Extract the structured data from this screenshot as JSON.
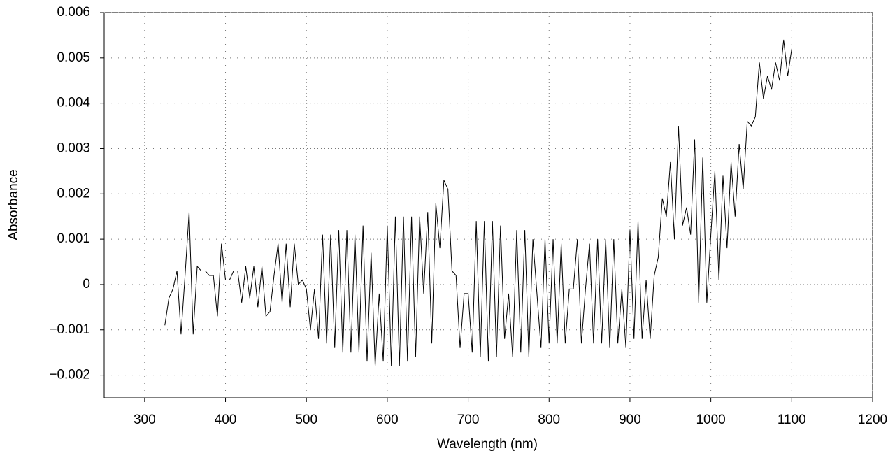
{
  "chart_data": {
    "type": "line",
    "xlabel": "Wavelength (nm)",
    "ylabel": "Absorbance",
    "xlim": [
      250,
      1200
    ],
    "xticks": [
      300,
      400,
      500,
      600,
      700,
      800,
      900,
      1000,
      1100,
      1200
    ],
    "ylim": [
      -0.0025,
      0.006
    ],
    "yticks": [
      {
        "value": -0.002,
        "label": "−0.002"
      },
      {
        "value": -0.001,
        "label": "−0.001"
      },
      0,
      0.001,
      0.002,
      0.003,
      0.004,
      0.005,
      0.006
    ],
    "grid": true,
    "series": [
      {
        "color": "#000000",
        "x": [
          325,
          330,
          335,
          340,
          345,
          350,
          355,
          360,
          365,
          370,
          375,
          380,
          385,
          390,
          395,
          400,
          405,
          410,
          415,
          420,
          425,
          430,
          435,
          440,
          445,
          450,
          455,
          460,
          465,
          470,
          475,
          480,
          485,
          490,
          495,
          500,
          505,
          510,
          515,
          520,
          525,
          530,
          535,
          540,
          545,
          550,
          555,
          560,
          565,
          570,
          575,
          580,
          585,
          590,
          595,
          600,
          605,
          610,
          615,
          620,
          625,
          630,
          635,
          640,
          645,
          650,
          655,
          660,
          665,
          670,
          675,
          680,
          685,
          690,
          695,
          700,
          705,
          710,
          715,
          720,
          725,
          730,
          735,
          740,
          745,
          750,
          755,
          760,
          765,
          770,
          775,
          780,
          785,
          790,
          795,
          800,
          805,
          810,
          815,
          820,
          825,
          830,
          835,
          840,
          845,
          850,
          855,
          860,
          865,
          870,
          875,
          880,
          885,
          890,
          895,
          900,
          905,
          910,
          915,
          920,
          925,
          930,
          935,
          940,
          945,
          950,
          955,
          960,
          965,
          970,
          975,
          980,
          985,
          990,
          995,
          1000,
          1005,
          1010,
          1015,
          1020,
          1025,
          1030,
          1035,
          1040,
          1045,
          1050,
          1055,
          1060,
          1065,
          1070,
          1075,
          1080,
          1085,
          1090,
          1095,
          1100
        ],
        "values": [
          -0.0009,
          -0.0003,
          -0.0001,
          0.0003,
          -0.0011,
          0.0002,
          0.0016,
          -0.0011,
          0.0004,
          0.0003,
          0.0003,
          0.0002,
          0.0002,
          -0.0007,
          0.0009,
          0.0001,
          0.0001,
          0.0003,
          0.0003,
          -0.0004,
          0.0004,
          -0.0003,
          0.0004,
          -0.0005,
          0.0004,
          -0.0007,
          -0.0006,
          0.0002,
          0.0009,
          -0.0004,
          0.0009,
          -0.0005,
          0.0009,
          0,
          0.0001,
          -0.0001,
          -0.001,
          -0.0001,
          -0.0012,
          0.0011,
          -0.0013,
          0.0011,
          -0.0014,
          0.0012,
          -0.0015,
          0.0012,
          -0.0015,
          0.0011,
          -0.0015,
          0.0013,
          -0.0017,
          0.0007,
          -0.0018,
          -0.0002,
          -0.0017,
          0.0013,
          -0.0018,
          0.0015,
          -0.0018,
          0.0015,
          -0.0017,
          0.0015,
          -0.0016,
          0.0015,
          -0.0002,
          0.0016,
          -0.0013,
          0.0018,
          0.0008,
          0.0023,
          0.0021,
          0.0003,
          0.0002,
          -0.0014,
          -0.0002,
          -0.0002,
          -0.0015,
          0.0014,
          -0.0016,
          0.0014,
          -0.0017,
          0.0014,
          -0.0016,
          0.0013,
          -0.0012,
          -0.0002,
          -0.0016,
          0.0012,
          -0.0015,
          0.0012,
          -0.0016,
          0.001,
          -0.0002,
          -0.0014,
          0.001,
          -0.0013,
          0.001,
          -0.0013,
          0.0009,
          -0.0013,
          -0.0001,
          -0.0001,
          0.001,
          -0.0013,
          -0.0001,
          0.0009,
          -0.0013,
          0.001,
          -0.0013,
          0.001,
          -0.0014,
          0.001,
          -0.0013,
          -0.0001,
          -0.0014,
          0.0012,
          -0.0012,
          0.0014,
          -0.0012,
          0.0001,
          -0.0012,
          0.0002,
          0.0006,
          0.0019,
          0.0015,
          0.0027,
          0.001,
          0.0035,
          0.0013,
          0.0017,
          0.0011,
          0.0032,
          -0.0004,
          0.0028,
          -0.0004,
          0.0011,
          0.0025,
          0.0001,
          0.0024,
          0.0008,
          0.0027,
          0.0015,
          0.0031,
          0.0021,
          0.0036,
          0.0035,
          0.0037,
          0.0049,
          0.0041,
          0.0046,
          0.0043,
          0.0049,
          0.0045,
          0.0054,
          0.0046,
          0.0052
        ]
      }
    ]
  }
}
